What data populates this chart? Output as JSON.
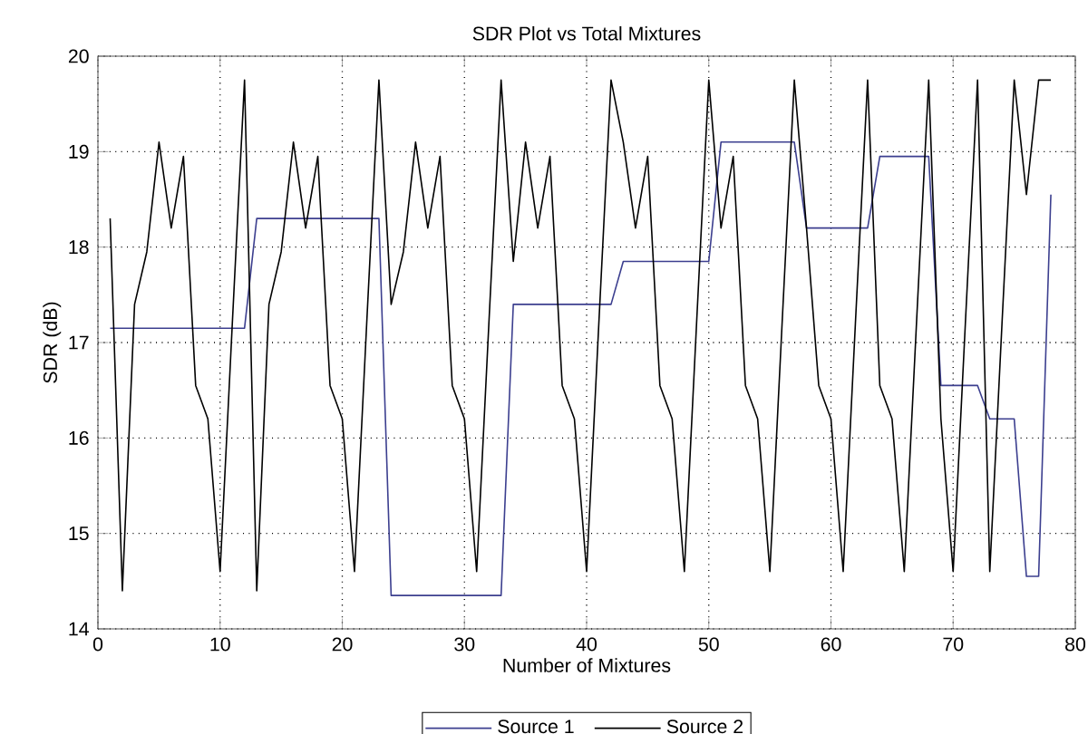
{
  "chart_data": {
    "type": "line",
    "title": "SDR Plot vs Total Mixtures",
    "xlabel": "Number of Mixtures",
    "ylabel": "SDR (dB)",
    "x": [
      1,
      2,
      3,
      4,
      5,
      6,
      7,
      8,
      9,
      10,
      11,
      12,
      13,
      14,
      15,
      16,
      17,
      18,
      19,
      20,
      21,
      22,
      23,
      24,
      25,
      26,
      27,
      28,
      29,
      30,
      31,
      32,
      33,
      34,
      35,
      36,
      37,
      38,
      39,
      40,
      41,
      42,
      43,
      44,
      45,
      46,
      47,
      48,
      49,
      50,
      51,
      52,
      53,
      54,
      55,
      56,
      57,
      58,
      59,
      60,
      61,
      62,
      63,
      64,
      65,
      66,
      67,
      68,
      69,
      70,
      71,
      72,
      73,
      74,
      75,
      76,
      77,
      78
    ],
    "series": [
      {
        "name": "Source 1",
        "color": "#3c3f8f",
        "values": [
          17.15,
          17.15,
          17.15,
          17.15,
          17.15,
          17.15,
          17.15,
          17.15,
          17.15,
          17.15,
          17.15,
          17.15,
          18.3,
          18.3,
          18.3,
          18.3,
          18.3,
          18.3,
          18.3,
          18.3,
          18.3,
          18.3,
          18.3,
          14.35,
          14.35,
          14.35,
          14.35,
          14.35,
          14.35,
          14.35,
          14.35,
          14.35,
          14.35,
          17.4,
          17.4,
          17.4,
          17.4,
          17.4,
          17.4,
          17.4,
          17.4,
          17.4,
          17.85,
          17.85,
          17.85,
          17.85,
          17.85,
          17.85,
          17.85,
          17.85,
          19.1,
          19.1,
          19.1,
          19.1,
          19.1,
          19.1,
          19.1,
          18.2,
          18.2,
          18.2,
          18.2,
          18.2,
          18.2,
          18.95,
          18.95,
          18.95,
          18.95,
          18.95,
          16.55,
          16.55,
          16.55,
          16.55,
          16.2,
          16.2,
          16.2,
          14.55,
          14.55,
          18.55
        ]
      },
      {
        "name": "Source 2",
        "color": "#000000",
        "values": [
          18.3,
          14.4,
          17.4,
          17.95,
          19.1,
          18.2,
          18.95,
          16.55,
          16.2,
          14.6,
          17.2,
          19.75,
          14.4,
          17.4,
          17.95,
          19.1,
          18.2,
          18.95,
          16.55,
          16.2,
          14.6,
          17.2,
          19.75,
          17.4,
          17.95,
          19.1,
          18.2,
          18.95,
          16.55,
          16.2,
          14.6,
          17.2,
          19.75,
          17.85,
          19.1,
          18.2,
          18.95,
          16.55,
          16.2,
          14.6,
          17.2,
          19.75,
          19.1,
          18.2,
          18.95,
          16.55,
          16.2,
          14.6,
          17.2,
          19.75,
          18.2,
          18.95,
          16.55,
          16.2,
          14.6,
          17.2,
          19.75,
          18.2,
          16.55,
          16.2,
          14.6,
          17.2,
          19.75,
          16.55,
          16.2,
          14.6,
          17.2,
          19.75,
          16.2,
          14.6,
          17.2,
          19.75,
          14.6,
          17.2,
          19.75,
          18.55,
          19.75,
          19.75
        ]
      }
    ],
    "xlim": [
      0,
      80
    ],
    "xticks": [
      0,
      10,
      20,
      30,
      40,
      50,
      60,
      70,
      80
    ],
    "ylim": [
      14,
      20
    ],
    "yticks": [
      14,
      15,
      16,
      17,
      18,
      19,
      20
    ],
    "grid": true,
    "legend": "bottom",
    "marker": "none",
    "line_style": "solid"
  }
}
